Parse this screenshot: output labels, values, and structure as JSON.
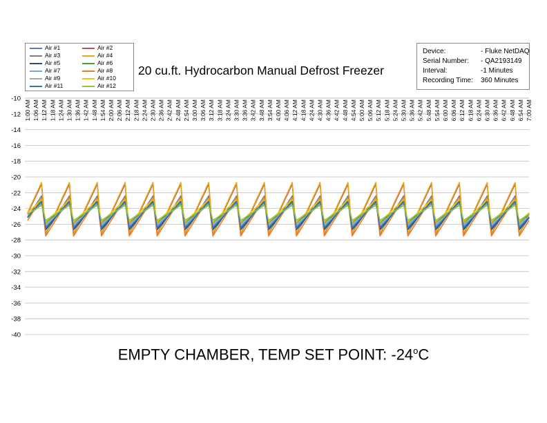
{
  "chart_title": "20 cu.ft. Hydrocarbon Manual Defrost Freezer",
  "caption_main": "EMPTY CHAMBER, TEMP SET POINT: -24",
  "caption_sup": "o",
  "caption_unit": "C",
  "info": [
    {
      "label": "Device:",
      "value": "- Fluke NetDAQ"
    },
    {
      "label": "Serial Number:",
      "value": "- QA2193149"
    },
    {
      "label": "Interval:",
      "value": "-1 Minutes"
    },
    {
      "label": "Recording Time:",
      "value": "360 Minutes"
    }
  ],
  "chart_data": {
    "type": "line",
    "ylim": [
      -40,
      -10
    ],
    "ystep": 2,
    "grid": true,
    "legend_position": "top-left",
    "x_ticks": [
      "1:00 AM",
      "1:06 AM",
      "1:12 AM",
      "1:18 AM",
      "1:24 AM",
      "1:30 AM",
      "1:36 AM",
      "1:42 AM",
      "1:48 AM",
      "1:54 AM",
      "2:00 AM",
      "2:06 AM",
      "2:12 AM",
      "2:18 AM",
      "2:24 AM",
      "2:30 AM",
      "2:36 AM",
      "2:42 AM",
      "2:48 AM",
      "2:54 AM",
      "3:00 AM",
      "3:06 AM",
      "3:12 AM",
      "3:18 AM",
      "3:24 AM",
      "3:30 AM",
      "3:36 AM",
      "3:42 AM",
      "3:48 AM",
      "3:54 AM",
      "4:00 AM",
      "4:06 AM",
      "4:12 AM",
      "4:18 AM",
      "4:24 AM",
      "4:30 AM",
      "4:36 AM",
      "4:42 AM",
      "4:48 AM",
      "4:54 AM",
      "5:00 AM",
      "5:06 AM",
      "5:12 AM",
      "5:18 AM",
      "5:24 AM",
      "5:30 AM",
      "5:36 AM",
      "5:42 AM",
      "5:48 AM",
      "5:54 AM",
      "6:00 AM",
      "6:06 AM",
      "6:12 AM",
      "6:18 AM",
      "6:24 AM",
      "6:30 AM",
      "6:36 AM",
      "6:42 AM",
      "6:48 AM",
      "6:54 AM",
      "7:00 AM"
    ],
    "cycle_minutes": 20,
    "first_peak_minute": 10,
    "series": [
      {
        "name": "Air #1",
        "color": "#4f81bd",
        "min": -26.4,
        "max": -23.2
      },
      {
        "name": "Air #2",
        "color": "#c0504d",
        "min": -27.3,
        "max": -20.9
      },
      {
        "name": "Air #3",
        "color": "#7f7f7f",
        "min": -27.1,
        "max": -22.4
      },
      {
        "name": "Air #4",
        "color": "#e6a817",
        "min": -27.2,
        "max": -20.7
      },
      {
        "name": "Air #5",
        "color": "#1f4e79",
        "min": -26.7,
        "max": -23.0
      },
      {
        "name": "Air #6",
        "color": "#4e9a3e",
        "min": -25.8,
        "max": -23.3
      },
      {
        "name": "Air #7",
        "color": "#6fa8dc",
        "min": -26.2,
        "max": -23.4
      },
      {
        "name": "Air #8",
        "color": "#f07c23",
        "min": -27.5,
        "max": -22.7
      },
      {
        "name": "Air #9",
        "color": "#a6a6a6",
        "min": -26.0,
        "max": -23.5
      },
      {
        "name": "Air #10",
        "color": "#f4c400",
        "min": -25.7,
        "max": -22.9
      },
      {
        "name": "Air #11",
        "color": "#2e75b6",
        "min": -26.5,
        "max": -23.1
      },
      {
        "name": "Air #12",
        "color": "#8bc34a",
        "min": -25.5,
        "max": -23.6
      }
    ]
  }
}
